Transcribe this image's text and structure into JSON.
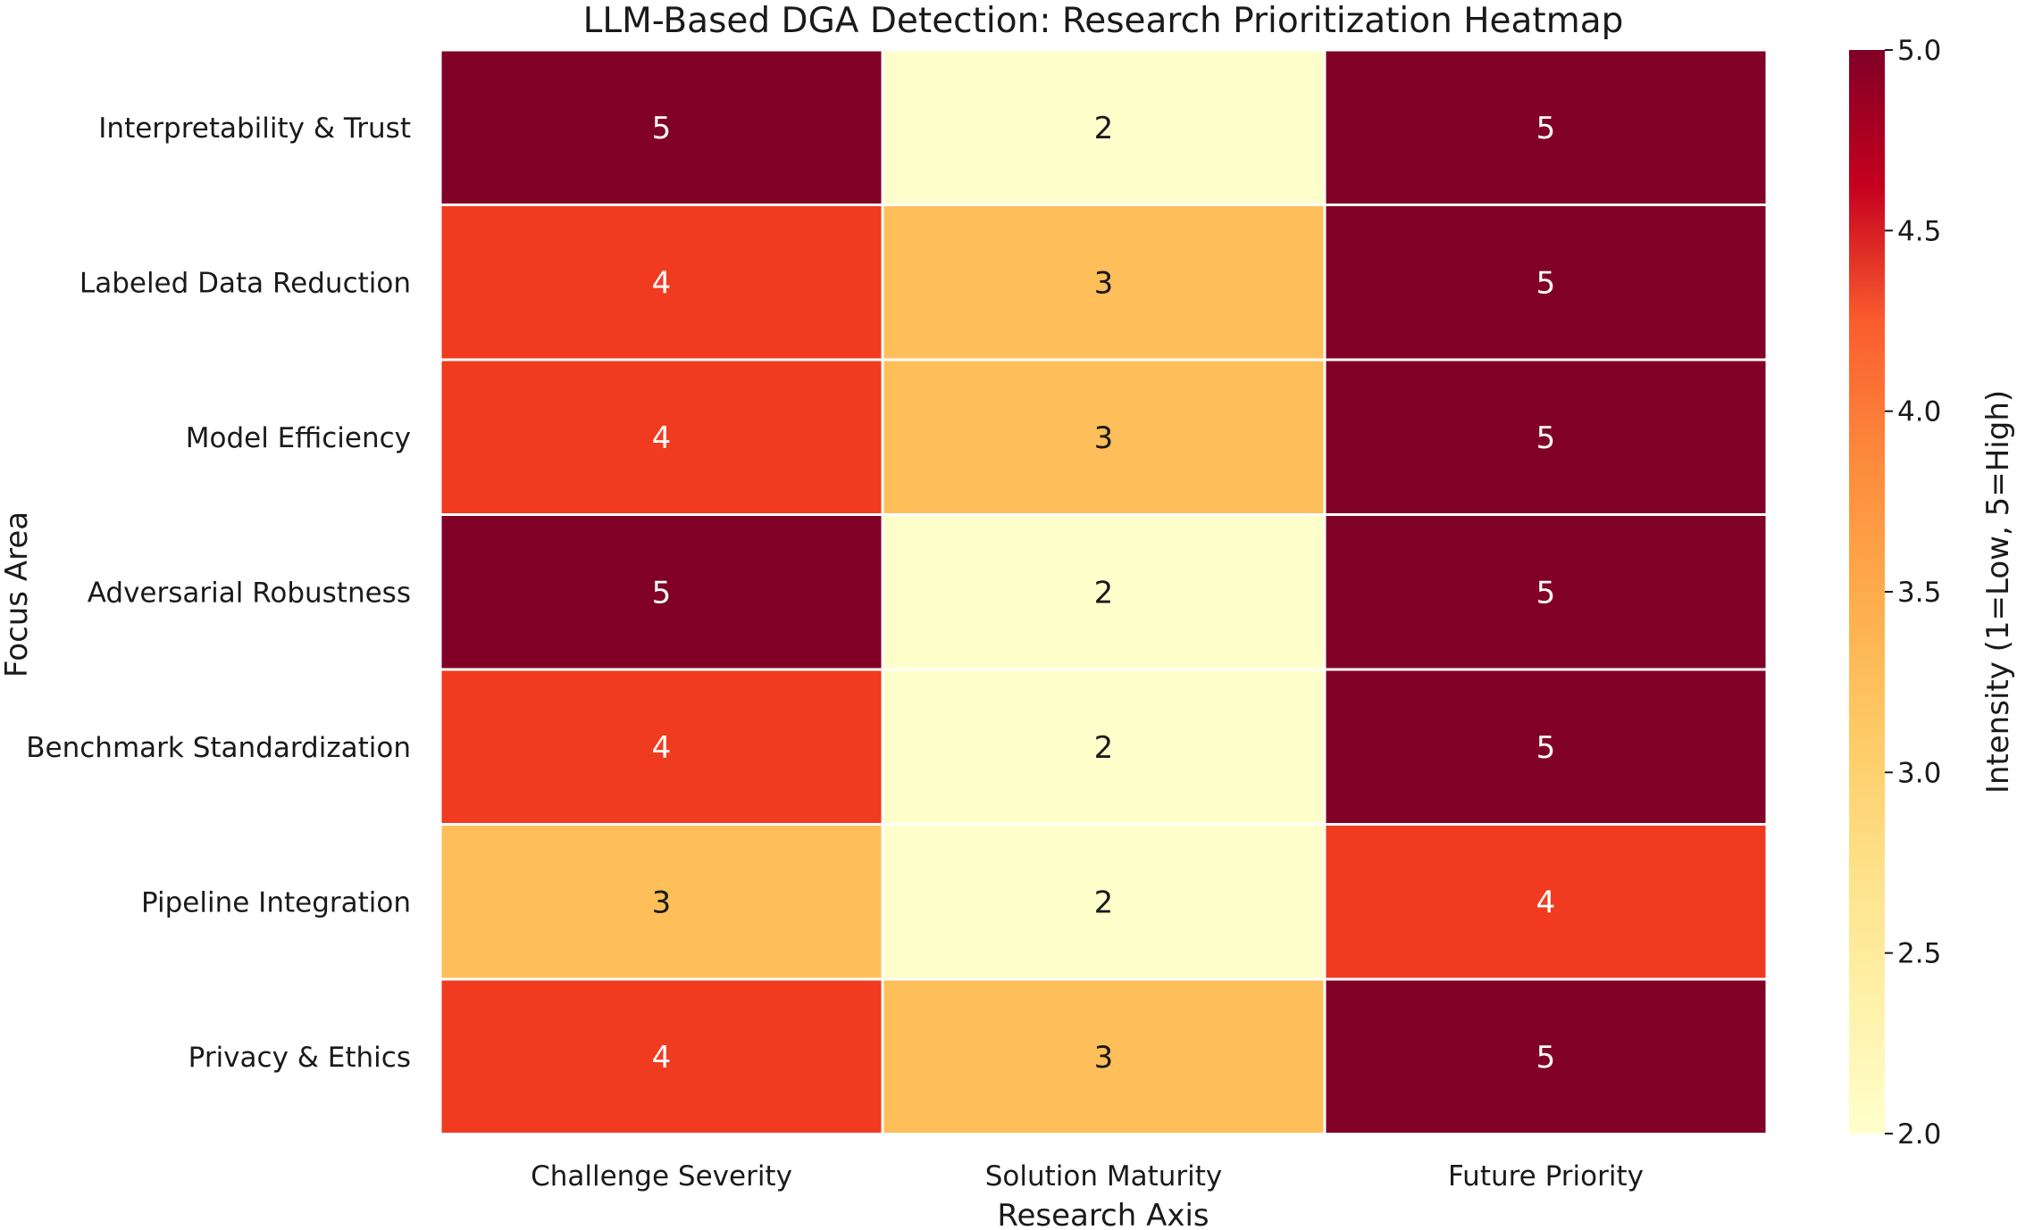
{
  "chart_data": {
    "type": "heatmap",
    "title": "LLM-Based DGA Detection: Research Prioritization Heatmap",
    "xlabel": "Research Axis",
    "ylabel": "Focus Area",
    "columns": [
      "Challenge Severity",
      "Solution Maturity",
      "Future Priority"
    ],
    "rows": [
      "Interpretability & Trust",
      "Labeled Data Reduction",
      "Model Efficiency",
      "Adversarial Robustness",
      "Benchmark Standardization",
      "Pipeline Integration",
      "Privacy & Ethics"
    ],
    "values": [
      [
        5,
        2,
        5
      ],
      [
        4,
        3,
        5
      ],
      [
        4,
        3,
        5
      ],
      [
        5,
        2,
        5
      ],
      [
        4,
        2,
        5
      ],
      [
        3,
        2,
        4
      ],
      [
        4,
        3,
        5
      ]
    ],
    "colorbar": {
      "label": "Intensity (1=Low, 5=High)",
      "range": [
        2.0,
        5.0
      ],
      "ticks": [
        "2.0",
        "2.5",
        "3.0",
        "3.5",
        "4.0",
        "4.5",
        "5.0"
      ],
      "colormap": "YlOrRd"
    },
    "colors": {
      "2": "#ffffcc",
      "3": "#febf5a",
      "4": "#f03b20",
      "5": "#800026"
    }
  }
}
